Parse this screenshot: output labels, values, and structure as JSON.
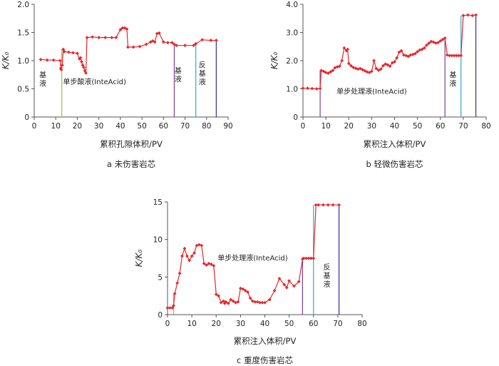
{
  "chart_data": [
    {
      "type": "line",
      "ylabel": "K/K₀",
      "xlabel": "累积孔隙体积/PV",
      "caption": "a  未伤害岩芯",
      "xlim": [
        0,
        90
      ],
      "ylim": [
        0,
        2.0
      ],
      "xticks": [
        0,
        10,
        20,
        30,
        40,
        50,
        60,
        70,
        80,
        90
      ],
      "yticks": [
        0,
        0.5,
        1.0,
        1.5,
        2.0
      ],
      "ytick_labels": [
        "0",
        "0.5",
        "1.0",
        "1.5",
        "2.0"
      ],
      "series": [
        {
          "color": "#e8262a",
          "x": [
            3,
            6,
            9,
            12,
            12.3,
            12.6,
            13,
            13.5,
            14,
            16,
            18,
            20,
            21,
            21.5,
            22,
            22.5,
            23,
            23.5,
            24,
            24.5,
            27,
            30,
            33,
            36,
            38,
            40,
            41,
            42,
            43,
            43.5,
            46,
            49,
            52,
            54,
            55,
            56,
            57,
            58,
            60,
            62,
            64,
            65,
            66,
            70,
            74,
            75,
            78,
            82,
            84.5
          ],
          "y": [
            1.02,
            1.01,
            1.01,
            1.0,
            0.86,
            0.84,
            0.92,
            1.2,
            1.16,
            1.15,
            1.14,
            1.13,
            1.03,
            1.05,
            0.98,
            0.92,
            0.88,
            0.82,
            0.78,
            1.41,
            1.42,
            1.41,
            1.41,
            1.41,
            1.41,
            1.55,
            1.58,
            1.58,
            1.56,
            1.24,
            1.24,
            1.25,
            1.29,
            1.33,
            1.35,
            1.33,
            1.48,
            1.49,
            1.33,
            1.32,
            1.32,
            1.29,
            1.27,
            1.27,
            1.27,
            1.3,
            1.37,
            1.36,
            1.36
          ]
        }
      ],
      "markers": [
        {
          "x": 12.8,
          "color": "#8dc63f"
        },
        {
          "x": 65,
          "color": "#7b3f98"
        },
        {
          "x": 75,
          "color": "#29a9e0"
        },
        {
          "x": 84.5,
          "color": "#2e3192"
        }
      ],
      "annotations": [
        {
          "text": "基液",
          "x": 4,
          "y": 0.7,
          "vertical": true
        },
        {
          "text": "单步酸液(InteAcid)",
          "x": 28,
          "y": 0.58
        },
        {
          "text": "基液",
          "x": 66.8,
          "y": 0.78,
          "vertical": true
        },
        {
          "text": "反基液",
          "x": 78,
          "y": 0.88,
          "vertical": true
        }
      ]
    },
    {
      "type": "line",
      "ylabel": "K/K₀",
      "xlabel": "累积注入体积/PV",
      "caption": "b  轻微伤害岩芯",
      "xlim": [
        0,
        80
      ],
      "ylim": [
        0,
        4.0
      ],
      "xticks": [
        0,
        10,
        20,
        30,
        40,
        50,
        60,
        70,
        80
      ],
      "yticks": [
        0,
        1.0,
        2.0,
        3.0,
        4.0
      ],
      "ytick_labels": [
        "0",
        "1.0",
        "2.0",
        "3.0",
        "4.0"
      ],
      "series": [
        {
          "color": "#e8262a",
          "x": [
            0,
            2,
            4,
            6,
            7.5,
            8,
            9,
            10,
            11,
            12,
            13,
            14,
            15,
            16,
            17,
            18,
            19,
            19.5,
            20,
            21,
            22,
            23,
            24,
            25,
            26,
            27,
            28,
            29,
            30,
            31,
            32,
            33,
            34,
            35,
            36,
            37,
            38,
            39,
            40,
            41,
            42,
            43,
            44,
            45,
            46,
            47,
            48,
            49,
            50,
            51,
            52,
            53,
            54,
            55,
            56,
            57,
            58,
            59,
            60,
            61,
            62,
            63,
            64,
            65,
            66,
            67,
            68,
            69,
            70,
            72,
            74,
            75.5
          ],
          "y": [
            1.02,
            1.02,
            1.01,
            1.0,
            1.01,
            1.65,
            1.62,
            1.58,
            1.55,
            1.6,
            1.65,
            1.75,
            1.78,
            1.8,
            2.0,
            2.45,
            2.35,
            2.4,
            1.9,
            1.82,
            1.76,
            1.73,
            1.7,
            1.72,
            1.68,
            1.64,
            1.6,
            1.58,
            1.62,
            2.0,
            1.72,
            1.66,
            1.7,
            1.82,
            1.88,
            1.85,
            1.8,
            1.92,
            1.96,
            2.1,
            2.3,
            2.35,
            2.2,
            2.18,
            2.15,
            2.2,
            2.22,
            2.25,
            2.32,
            2.38,
            2.4,
            2.45,
            2.55,
            2.62,
            2.68,
            2.66,
            2.62,
            2.64,
            2.7,
            2.75,
            2.8,
            2.2,
            2.18,
            2.18,
            2.18,
            2.18,
            2.18,
            2.18,
            3.6,
            3.62,
            3.6,
            3.62
          ]
        }
      ],
      "markers": [
        {
          "x": 7.5,
          "color": "#7b3f98"
        },
        {
          "x": 62,
          "color": "#7b3f98"
        },
        {
          "x": 69,
          "color": "#29a9e0"
        },
        {
          "x": 75.5,
          "color": "#2e3192"
        }
      ],
      "annotations": [
        {
          "text": "单步处理液(InteAcid)",
          "x": 30,
          "y": 0.82
        },
        {
          "text": "基液",
          "x": 65.5,
          "y": 1.4,
          "vertical": true
        }
      ]
    },
    {
      "type": "line",
      "ylabel": "K/K₀",
      "xlabel": "累积注入体积/PV",
      "caption": "c  重度伤害岩芯",
      "xlim": [
        0,
        80
      ],
      "ylim": [
        0,
        15
      ],
      "xticks": [
        0,
        10,
        20,
        30,
        40,
        50,
        60,
        70,
        80
      ],
      "yticks": [
        0,
        5,
        10,
        15
      ],
      "ytick_labels": [
        "0",
        "5",
        "10",
        "15"
      ],
      "series": [
        {
          "color": "#e8262a",
          "x": [
            0,
            1,
            2,
            2.5,
            3,
            4,
            5,
            6,
            7,
            8,
            9,
            10,
            11,
            12,
            13,
            14,
            15,
            16,
            17,
            18,
            19,
            20,
            21,
            22,
            23,
            23.5,
            24,
            25,
            26,
            27,
            28,
            29,
            30,
            31,
            32,
            33,
            34,
            35,
            36,
            37,
            38,
            39,
            40,
            42,
            44,
            46,
            48,
            49,
            50,
            52,
            54,
            55.5,
            56,
            57,
            58,
            59,
            60,
            61,
            62,
            64,
            66,
            68,
            70.5
          ],
          "y": [
            0.9,
            0.9,
            0.9,
            1.2,
            2.8,
            4.2,
            5.5,
            7.8,
            8.8,
            7.8,
            7.2,
            7.8,
            8.2,
            9.2,
            9.3,
            9.2,
            6.8,
            6.6,
            6.8,
            6.7,
            6.5,
            2.7,
            2.5,
            1.6,
            1.8,
            1.5,
            1.7,
            1.5,
            2.0,
            1.8,
            1.6,
            1.7,
            3.5,
            3.4,
            3.2,
            3.0,
            2.2,
            1.8,
            1.7,
            1.7,
            1.6,
            1.6,
            1.6,
            2.0,
            3.2,
            4.8,
            4.0,
            3.6,
            4.5,
            3.8,
            4.4,
            7.4,
            7.5,
            7.5,
            7.5,
            7.5,
            7.5,
            14.6,
            14.6,
            14.6,
            14.6,
            14.6,
            14.6
          ]
        }
      ],
      "markers": [
        {
          "x": 2.5,
          "color": "#8dc63f"
        },
        {
          "x": 55.5,
          "color": "#7b3f98"
        },
        {
          "x": 60,
          "color": "#29a9e0"
        },
        {
          "x": 70.5,
          "color": "#2e3192"
        }
      ],
      "annotations": [
        {
          "text": "单步处理液(InteAcid)",
          "x": 35,
          "y": 7.2
        },
        {
          "text": "反基液",
          "x": 65.5,
          "y": 6.0,
          "vertical": true
        }
      ]
    }
  ]
}
